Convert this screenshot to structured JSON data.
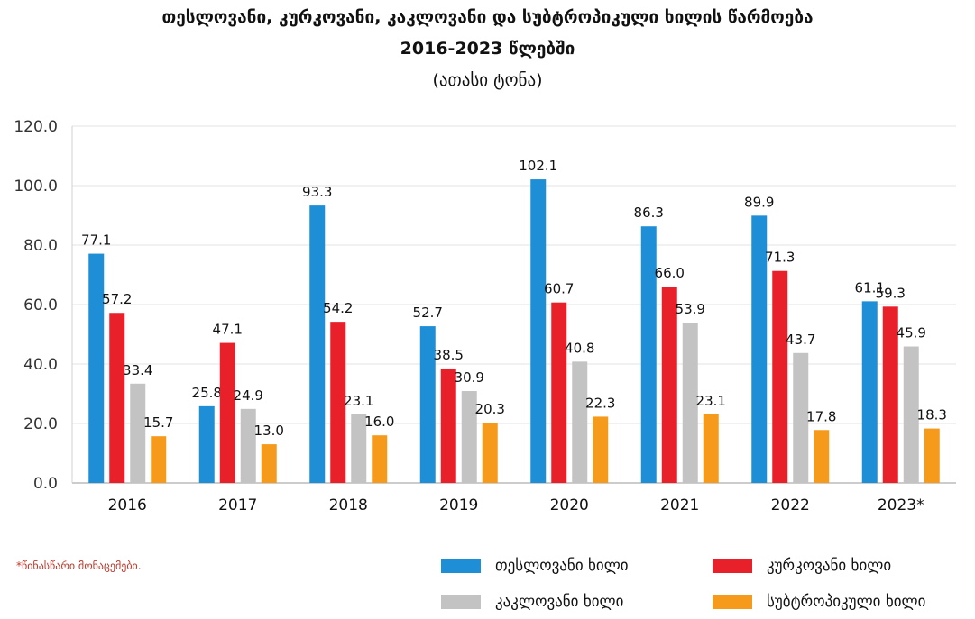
{
  "header": {
    "title_line1": "თესლოვანი, კურკოვანი, კაკლოვანი და სუბტროპიკული ხილის წარმოება",
    "title_line2": "2016-2023 წლებში",
    "subtitle": "(ათასი ტონა)"
  },
  "footnote": "*წინასწარი მონაცემები.",
  "chart_data": {
    "type": "bar",
    "categories": [
      "2016",
      "2017",
      "2018",
      "2019",
      "2020",
      "2021",
      "2022",
      "2023*"
    ],
    "ylim": [
      0,
      120
    ],
    "yticks": [
      "0.0",
      "20.0",
      "40.0",
      "60.0",
      "80.0",
      "100.0",
      "120.0"
    ],
    "grid": true,
    "legend_placement": "bottom",
    "series": [
      {
        "name": "თესლოვანი ხილი",
        "color": "#1e8fd6",
        "values": [
          77.1,
          25.8,
          93.3,
          52.7,
          102.1,
          86.3,
          89.9,
          61.1
        ]
      },
      {
        "name": "კურკოვანი ხილი",
        "color": "#e8202a",
        "values": [
          57.2,
          47.1,
          54.2,
          38.5,
          60.7,
          66.0,
          71.3,
          59.3
        ]
      },
      {
        "name": "კაკლოვანი ხილი",
        "color": "#c3c3c3",
        "values": [
          33.4,
          24.9,
          23.1,
          30.9,
          40.8,
          53.9,
          43.7,
          45.9
        ]
      },
      {
        "name": "სუბტროპიკული ხილი",
        "color": "#f59a1b",
        "values": [
          15.7,
          13.0,
          16.0,
          20.3,
          22.3,
          23.1,
          17.8,
          18.3
        ]
      }
    ]
  }
}
